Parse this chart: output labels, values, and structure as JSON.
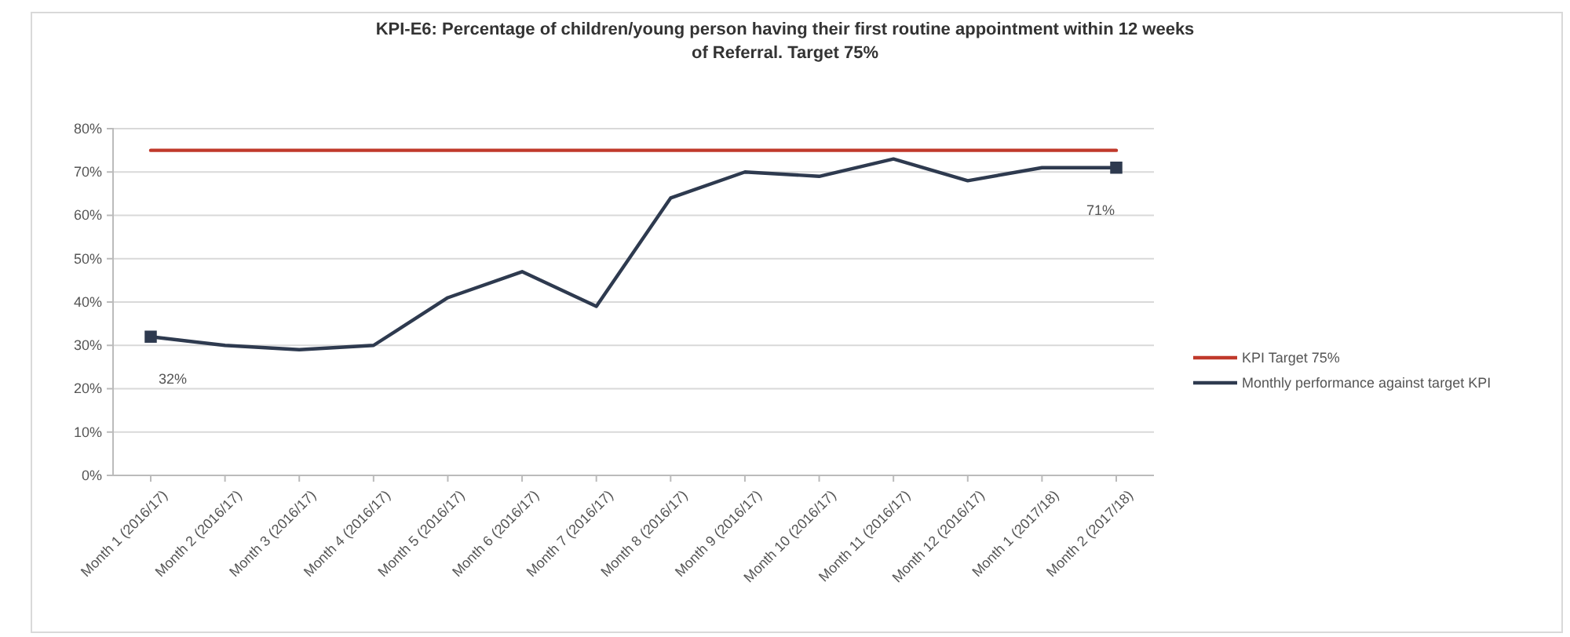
{
  "chart_data": {
    "type": "line",
    "title": "KPI-E6: Percentage of children/young person having their first routine appointment within 12 weeks of Referral. Target 75%",
    "categories": [
      "Month 1 (2016/17)",
      "Month 2 (2016/17)",
      "Month 3 (2016/17)",
      "Month 4 (2016/17)",
      "Month 5 (2016/17)",
      "Month 6 (2016/17)",
      "Month 7 (2016/17)",
      "Month 8 (2016/17)",
      "Month 9 (2016/17)",
      "Month 10 (2016/17)",
      "Month 11 (2016/17)",
      "Month 12 (2016/17)",
      "Month 1 (2017/18)",
      "Month 2 (2017/18)"
    ],
    "series": [
      {
        "name": "KPI Target 75%",
        "color": "#c0392b",
        "values": [
          75,
          75,
          75,
          75,
          75,
          75,
          75,
          75,
          75,
          75,
          75,
          75,
          75,
          75
        ]
      },
      {
        "name": "Monthly performance against target KPI",
        "color": "#2e3a4f",
        "values": [
          32,
          30,
          29,
          30,
          41,
          47,
          39,
          64,
          70,
          69,
          73,
          68,
          71,
          71
        ]
      },
      {
        "type": "scatter",
        "color": "#2e3a4f",
        "marker": "square",
        "x": [
          "Month 1 (2016/17)",
          "Month 2 (2017/18)"
        ],
        "values": [
          32,
          71
        ],
        "value_labels": [
          "32%",
          "71%"
        ]
      }
    ],
    "ylim": [
      0,
      80
    ],
    "yticks": [
      {
        "value": 0,
        "label": "0%"
      },
      {
        "value": 10,
        "label": "10%"
      },
      {
        "value": 20,
        "label": "20%"
      },
      {
        "value": 30,
        "label": "30%"
      },
      {
        "value": 40,
        "label": "40%"
      },
      {
        "value": 50,
        "label": "50%"
      },
      {
        "value": 60,
        "label": "60%"
      },
      {
        "value": 70,
        "label": "70%"
      },
      {
        "value": 80,
        "label": "80%"
      }
    ],
    "grid": "y",
    "legend": "right"
  }
}
